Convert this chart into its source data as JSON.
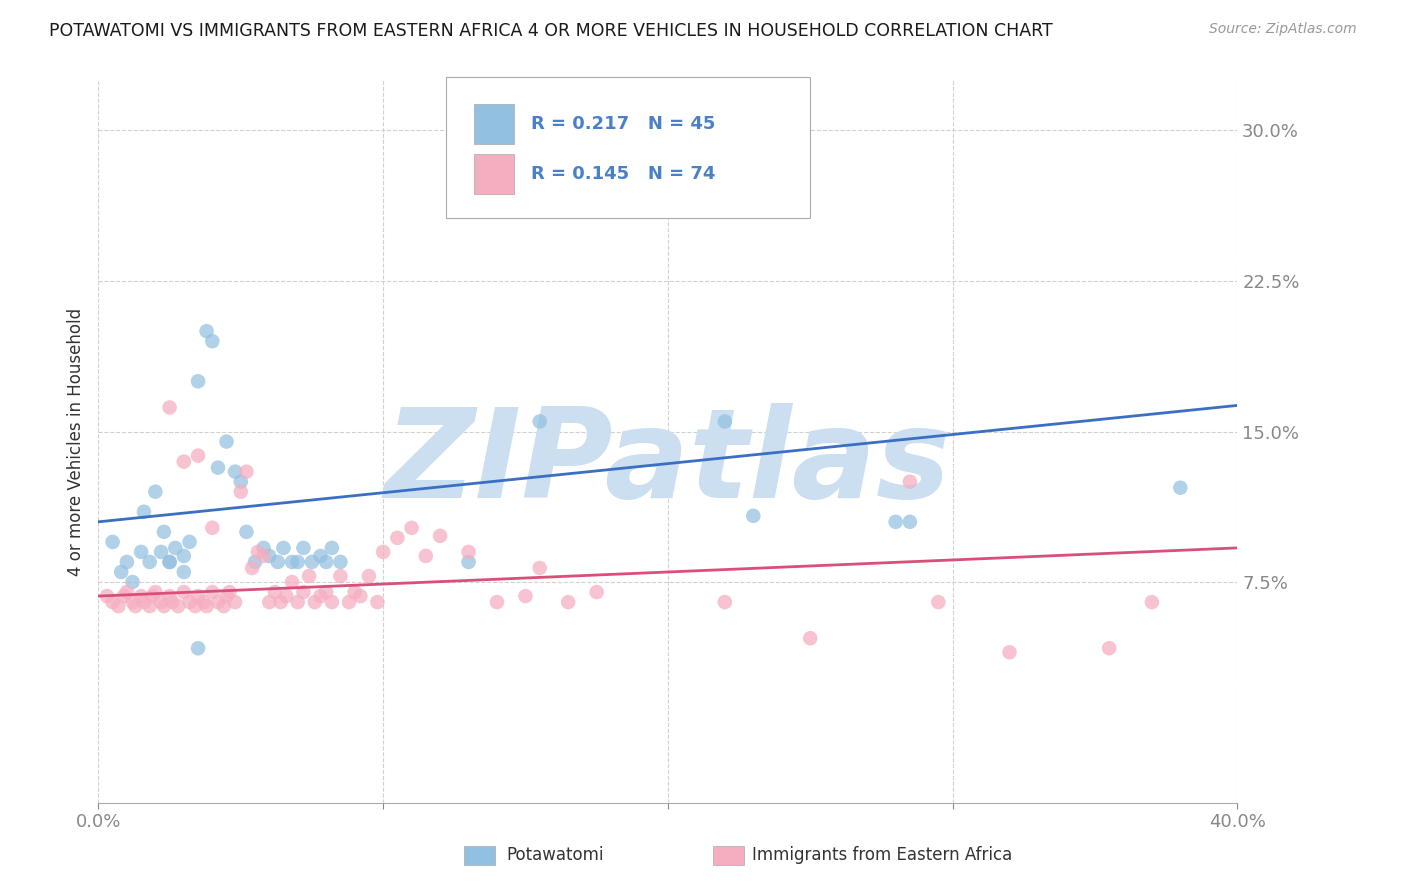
{
  "title": "POTAWATOMI VS IMMIGRANTS FROM EASTERN AFRICA 4 OR MORE VEHICLES IN HOUSEHOLD CORRELATION CHART",
  "source": "Source: ZipAtlas.com",
  "ylabel": "4 or more Vehicles in Household",
  "xlim": [
    0.0,
    0.4
  ],
  "ylim": [
    -0.035,
    0.325
  ],
  "yticks": [
    0.075,
    0.15,
    0.225,
    0.3
  ],
  "ytick_labels": [
    "7.5%",
    "15.0%",
    "22.5%",
    "30.0%"
  ],
  "xticks": [
    0.0,
    0.1,
    0.2,
    0.3,
    0.4
  ],
  "xtick_labels": [
    "0.0%",
    "",
    "",
    "",
    "40.0%"
  ],
  "blue_R": "0.217",
  "blue_N": "45",
  "pink_R": "0.145",
  "pink_N": "74",
  "blue_label": "Potawatomi",
  "pink_label": "Immigrants from Eastern Africa",
  "blue_color": "#92c0e0",
  "pink_color": "#f5adc0",
  "blue_line_color": "#3a6fc4",
  "pink_line_color": "#d94f7a",
  "axis_tick_color": "#4a80c8",
  "watermark": "ZIPatlas",
  "watermark_color": "#ccdff0",
  "title_color": "#1a1a1a",
  "grid_color": "#cccccc",
  "blue_scatter_x": [
    0.005,
    0.008,
    0.01,
    0.012,
    0.015,
    0.016,
    0.018,
    0.02,
    0.022,
    0.023,
    0.025,
    0.027,
    0.03,
    0.032,
    0.035,
    0.038,
    0.04,
    0.042,
    0.045,
    0.048,
    0.05,
    0.052,
    0.055,
    0.058,
    0.06,
    0.063,
    0.065,
    0.068,
    0.07,
    0.072,
    0.075,
    0.078,
    0.08,
    0.082,
    0.085,
    0.13,
    0.155,
    0.22,
    0.23,
    0.28,
    0.285,
    0.38,
    0.025,
    0.03,
    0.035
  ],
  "blue_scatter_y": [
    0.095,
    0.08,
    0.085,
    0.075,
    0.09,
    0.11,
    0.085,
    0.12,
    0.09,
    0.1,
    0.085,
    0.092,
    0.088,
    0.095,
    0.175,
    0.2,
    0.195,
    0.132,
    0.145,
    0.13,
    0.125,
    0.1,
    0.085,
    0.092,
    0.088,
    0.085,
    0.092,
    0.085,
    0.085,
    0.092,
    0.085,
    0.088,
    0.085,
    0.092,
    0.085,
    0.085,
    0.155,
    0.155,
    0.108,
    0.105,
    0.105,
    0.122,
    0.085,
    0.08,
    0.042
  ],
  "pink_scatter_x": [
    0.003,
    0.005,
    0.007,
    0.009,
    0.01,
    0.012,
    0.013,
    0.015,
    0.016,
    0.018,
    0.019,
    0.02,
    0.022,
    0.023,
    0.025,
    0.026,
    0.028,
    0.03,
    0.032,
    0.034,
    0.035,
    0.037,
    0.038,
    0.04,
    0.042,
    0.044,
    0.046,
    0.048,
    0.05,
    0.052,
    0.054,
    0.056,
    0.058,
    0.06,
    0.062,
    0.064,
    0.066,
    0.068,
    0.07,
    0.072,
    0.074,
    0.076,
    0.078,
    0.08,
    0.082,
    0.085,
    0.088,
    0.09,
    0.092,
    0.095,
    0.098,
    0.1,
    0.105,
    0.11,
    0.115,
    0.12,
    0.13,
    0.14,
    0.15,
    0.155,
    0.165,
    0.175,
    0.22,
    0.25,
    0.285,
    0.295,
    0.32,
    0.355,
    0.37,
    0.025,
    0.03,
    0.035,
    0.04,
    0.045
  ],
  "pink_scatter_y": [
    0.068,
    0.065,
    0.063,
    0.068,
    0.07,
    0.065,
    0.063,
    0.068,
    0.065,
    0.063,
    0.068,
    0.07,
    0.065,
    0.063,
    0.068,
    0.065,
    0.063,
    0.07,
    0.065,
    0.063,
    0.068,
    0.065,
    0.063,
    0.07,
    0.065,
    0.063,
    0.07,
    0.065,
    0.12,
    0.13,
    0.082,
    0.09,
    0.088,
    0.065,
    0.07,
    0.065,
    0.068,
    0.075,
    0.065,
    0.07,
    0.078,
    0.065,
    0.068,
    0.07,
    0.065,
    0.078,
    0.065,
    0.07,
    0.068,
    0.078,
    0.065,
    0.09,
    0.097,
    0.102,
    0.088,
    0.098,
    0.09,
    0.065,
    0.068,
    0.082,
    0.065,
    0.07,
    0.065,
    0.047,
    0.125,
    0.065,
    0.04,
    0.042,
    0.065,
    0.162,
    0.135,
    0.138,
    0.102,
    0.068
  ],
  "blue_trend_x": [
    0.0,
    0.4
  ],
  "blue_trend_y": [
    0.105,
    0.163
  ],
  "pink_trend_x": [
    0.0,
    0.4
  ],
  "pink_trend_y": [
    0.068,
    0.092
  ],
  "background_color": "#ffffff",
  "figsize": [
    14.06,
    8.92
  ],
  "dpi": 100
}
